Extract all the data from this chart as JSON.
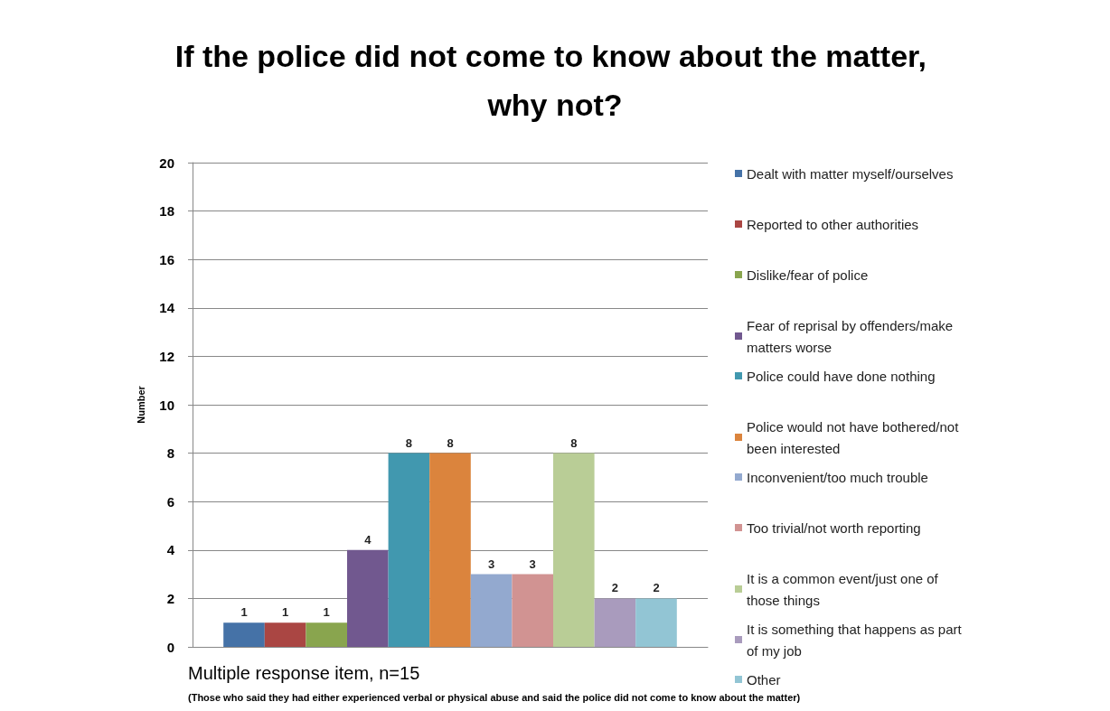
{
  "chart_data": {
    "type": "bar",
    "title": "If the police did not come to know about the matter, why not?",
    "ylabel": "Number",
    "categories": [
      null
    ],
    "series": [
      {
        "name": "Dealt with matter myself/ourselves",
        "color": "#4572a7",
        "values": [
          1
        ]
      },
      {
        "name": "Reported to other authorities",
        "color": "#aa4643",
        "values": [
          1
        ]
      },
      {
        "name": "Dislike/fear of police",
        "color": "#89a54e",
        "values": [
          1
        ]
      },
      {
        "name": "Fear of reprisal by offenders/make matters worse",
        "color": "#71588f",
        "values": [
          4
        ]
      },
      {
        "name": "Police could have done nothing",
        "color": "#4198af",
        "values": [
          8
        ]
      },
      {
        "name": "Police would not have bothered/not been interested",
        "color": "#db843d",
        "values": [
          8
        ]
      },
      {
        "name": "Inconvenient/too much trouble",
        "color": "#93a9cf",
        "values": [
          3
        ]
      },
      {
        "name": "Too trivial/not worth reporting",
        "color": "#d19392",
        "values": [
          3
        ]
      },
      {
        "name": "It is a common event/just one of those things",
        "color": "#b9cd96",
        "values": [
          8
        ]
      },
      {
        "name": "It is something that happens as part of my job",
        "color": "#a99bbd",
        "values": [
          2
        ]
      },
      {
        "name": "Other",
        "color": "#92c5d4",
        "values": [
          2
        ]
      }
    ],
    "ylim": [
      0,
      20
    ],
    "yticks": [
      0,
      2,
      4,
      6,
      8,
      10,
      12,
      14,
      16,
      18,
      20
    ],
    "grid": "y",
    "legend": "right",
    "data_labels": true,
    "annotations": [
      "Multiple response item, n=15",
      "(Those who said they had either experienced verbal or physical abuse and said the police did not come to know about the matter)"
    ]
  }
}
